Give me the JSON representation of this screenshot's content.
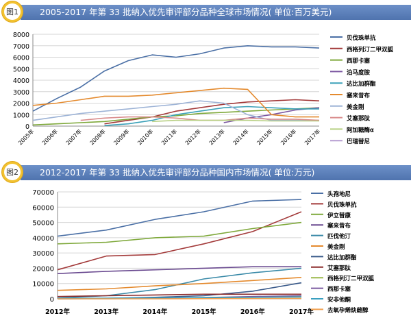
{
  "figure1": {
    "badge": "图1",
    "title": "2005-2017 年第 33 批纳入优先审评部分品种全球市场情况( 单位:百万美元)"
  },
  "figure2": {
    "badge": "图2",
    "title": "2012-2017 年第 33 批纳入优先审评部分品种国内市场情况( 单位:万元)"
  },
  "chart_data": [
    {
      "type": "line",
      "title": "2005-2017 年第 33 批纳入优先审评部分品种全球市场情况( 单位:百万美元)",
      "categories": [
        "2005年",
        "2006年",
        "2007年",
        "2008年",
        "2009年",
        "2010年",
        "2011年",
        "2012年",
        "2013年",
        "2014年",
        "2015年",
        "2016年",
        "2017年"
      ],
      "ylim": [
        0,
        8000
      ],
      "yticks": [
        0,
        1000,
        2000,
        3000,
        4000,
        5000,
        6000,
        7000,
        8000
      ],
      "grid": true,
      "legend_position": "right",
      "series": [
        {
          "name": "贝伐珠单抗",
          "color": "#4a6fa5",
          "values": [
            1300,
            2400,
            3400,
            4800,
            5700,
            6200,
            6000,
            6300,
            6800,
            7000,
            6900,
            6900,
            6800
          ]
        },
        {
          "name": "西格列汀二甲双胍",
          "color": "#a33a3a",
          "values": [
            null,
            null,
            null,
            200,
            500,
            800,
            1300,
            1600,
            1900,
            2100,
            2200,
            2300,
            2200
          ]
        },
        {
          "name": "西那卡塞",
          "color": "#7ea83a",
          "values": [
            100,
            200,
            300,
            400,
            600,
            800,
            900,
            1100,
            1200,
            1300,
            1400,
            1500,
            1600
          ]
        },
        {
          "name": "泊马度胺",
          "color": "#7a55a0",
          "values": [
            null,
            null,
            null,
            null,
            null,
            null,
            null,
            null,
            300,
            700,
            1000,
            1400,
            1600
          ]
        },
        {
          "name": "达比加群酯",
          "color": "#3aa0b8",
          "values": [
            null,
            null,
            null,
            50,
            200,
            500,
            1000,
            1300,
            1600,
            1700,
            1600,
            1500,
            1500
          ]
        },
        {
          "name": "塞来昔布",
          "color": "#e48a2e",
          "values": [
            1800,
            2000,
            2300,
            2600,
            2600,
            2700,
            2900,
            3100,
            3300,
            3200,
            1000,
            800,
            800
          ]
        },
        {
          "name": "美金刚",
          "color": "#9db3d6",
          "values": [
            500,
            800,
            1100,
            1300,
            1500,
            1700,
            1900,
            2200,
            2000,
            1000,
            500,
            500,
            500
          ]
        },
        {
          "name": "艾塞那肽",
          "color": "#d98b8b",
          "values": [
            null,
            null,
            500,
            700,
            800,
            800,
            700,
            500,
            500,
            700,
            600,
            600,
            500
          ]
        },
        {
          "name": "阿加糖酶α",
          "color": "#b8d084",
          "values": [
            null,
            null,
            null,
            null,
            null,
            400,
            500,
            500,
            500,
            500,
            450,
            450,
            450
          ]
        },
        {
          "name": "巴瑞替尼",
          "color": "#b59cd0",
          "values": [
            null,
            null,
            null,
            null,
            null,
            null,
            null,
            null,
            null,
            null,
            null,
            null,
            100
          ]
        }
      ]
    },
    {
      "type": "line",
      "title": "2012-2017 年第 33 批纳入优先审评部分品种国内市场情况( 单位:万元)",
      "categories": [
        "2012年",
        "2013年",
        "2014年",
        "2015年",
        "2016年",
        "2017年"
      ],
      "ylim": [
        0,
        70000
      ],
      "yticks": [
        0,
        10000,
        20000,
        30000,
        40000,
        50000,
        60000,
        70000
      ],
      "grid": true,
      "legend_position": "right",
      "series": [
        {
          "name": "头孢地尼",
          "color": "#4a6fa5",
          "values": [
            41000,
            45000,
            52000,
            57000,
            64000,
            65000
          ]
        },
        {
          "name": "贝伐珠单抗",
          "color": "#a33a3a",
          "values": [
            19000,
            28000,
            29000,
            36000,
            44000,
            57000
          ]
        },
        {
          "name": "伊立替康",
          "color": "#7ea83a",
          "values": [
            36000,
            37000,
            40000,
            41000,
            46000,
            50000
          ]
        },
        {
          "name": "塞来昔布",
          "color": "#6a4a90",
          "values": [
            16500,
            18000,
            19000,
            20000,
            21000,
            21000
          ]
        },
        {
          "name": "匹伐他汀",
          "color": "#3a8aa8",
          "values": [
            500,
            2000,
            6000,
            13000,
            17000,
            20000
          ]
        },
        {
          "name": "美金刚",
          "color": "#e48a2e",
          "values": [
            5500,
            6500,
            8500,
            10000,
            12000,
            14000
          ]
        },
        {
          "name": "达比加群酯",
          "color": "#3a5a8a",
          "values": [
            0,
            300,
            1000,
            2000,
            5000,
            10500
          ]
        },
        {
          "name": "艾塞那肽",
          "color": "#8a2a2a",
          "values": [
            1500,
            2000,
            2500,
            3000,
            3000,
            3000
          ]
        },
        {
          "name": "西格列汀二甲双胍",
          "color": "#9ab84a",
          "values": [
            0,
            200,
            400,
            600,
            1000,
            1500
          ]
        },
        {
          "name": "西那卡塞",
          "color": "#7a5aa0",
          "values": [
            0,
            100,
            300,
            800,
            1500,
            2000
          ]
        },
        {
          "name": "安非他酮",
          "color": "#3aa0c0",
          "values": [
            200,
            400,
            600,
            800,
            1000,
            1200
          ]
        },
        {
          "name": "去氧孕烯炔雌醇",
          "color": "#f0a050",
          "values": [
            0,
            0,
            0,
            100,
            200,
            300
          ]
        }
      ]
    }
  ]
}
